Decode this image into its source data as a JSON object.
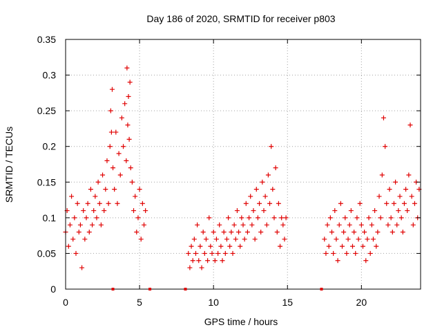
{
  "chart_data": {
    "type": "scatter",
    "title": "Day 186 of 2020, SRMTID for receiver p803",
    "xlabel": "GPS time / hours",
    "ylabel": "SRMTID / TECUs",
    "xlim": [
      0,
      24
    ],
    "ylim": [
      0,
      0.35
    ],
    "xticks": [
      0,
      5,
      10,
      15,
      20
    ],
    "yticks": [
      0,
      0.05,
      0.1,
      0.15,
      0.2,
      0.25,
      0.3,
      0.35
    ],
    "xtick_labels": [
      "0",
      "5",
      "10",
      "15",
      "20"
    ],
    "ytick_labels": [
      "0",
      "0.05",
      "0.1",
      "0.15",
      "0.2",
      "0.25",
      "0.3",
      "0.35"
    ],
    "grid": true,
    "marker": "+",
    "color": "#e00000",
    "gap_markers_x": [
      3.2,
      5.7,
      8.1,
      17.3
    ],
    "series": [
      {
        "name": "SRMTID",
        "x": [
          0.0,
          0.1,
          0.2,
          0.3,
          0.4,
          0.5,
          0.6,
          0.7,
          0.8,
          0.9,
          1.0,
          1.1,
          1.2,
          1.3,
          1.4,
          1.5,
          1.6,
          1.7,
          1.8,
          1.9,
          2.0,
          2.1,
          2.2,
          2.3,
          2.4,
          2.5,
          2.6,
          2.7,
          2.8,
          2.9,
          3.0,
          3.05,
          3.1,
          3.15,
          3.2,
          3.3,
          3.4,
          3.5,
          3.6,
          3.7,
          3.8,
          3.9,
          4.0,
          4.1,
          4.15,
          4.2,
          4.25,
          4.3,
          4.35,
          4.4,
          4.5,
          4.6,
          4.7,
          4.8,
          4.9,
          5.0,
          5.1,
          5.2,
          5.3,
          5.4,
          8.3,
          8.4,
          8.5,
          8.6,
          8.7,
          8.8,
          8.9,
          9.0,
          9.1,
          9.2,
          9.3,
          9.4,
          9.5,
          9.6,
          9.7,
          9.8,
          9.9,
          10.0,
          10.1,
          10.2,
          10.3,
          10.4,
          10.5,
          10.6,
          10.7,
          10.8,
          10.9,
          11.0,
          11.1,
          11.2,
          11.3,
          11.4,
          11.5,
          11.6,
          11.7,
          11.8,
          11.9,
          12.0,
          12.1,
          12.2,
          12.3,
          12.4,
          12.5,
          12.6,
          12.7,
          12.8,
          12.9,
          13.0,
          13.1,
          13.2,
          13.3,
          13.4,
          13.5,
          13.6,
          13.7,
          13.8,
          13.9,
          14.0,
          14.1,
          14.2,
          14.3,
          14.4,
          14.5,
          14.6,
          14.7,
          14.8,
          14.9,
          17.5,
          17.6,
          17.7,
          17.8,
          17.9,
          18.0,
          18.1,
          18.2,
          18.3,
          18.4,
          18.5,
          18.6,
          18.7,
          18.8,
          18.9,
          19.0,
          19.1,
          19.2,
          19.3,
          19.4,
          19.5,
          19.6,
          19.7,
          19.8,
          19.9,
          20.0,
          20.1,
          20.2,
          20.3,
          20.4,
          20.5,
          20.6,
          20.7,
          20.8,
          20.9,
          21.0,
          21.1,
          21.2,
          21.3,
          21.4,
          21.5,
          21.6,
          21.7,
          21.8,
          21.9,
          22.0,
          22.1,
          22.2,
          22.3,
          22.4,
          22.5,
          22.6,
          22.7,
          22.8,
          22.9,
          23.0,
          23.1,
          23.2,
          23.3,
          23.4,
          23.5,
          23.6,
          23.7,
          23.8,
          23.9
        ],
        "y": [
          0.08,
          0.11,
          0.06,
          0.09,
          0.13,
          0.07,
          0.1,
          0.05,
          0.12,
          0.08,
          0.09,
          0.03,
          0.11,
          0.07,
          0.1,
          0.12,
          0.08,
          0.14,
          0.09,
          0.11,
          0.13,
          0.1,
          0.15,
          0.12,
          0.09,
          0.16,
          0.11,
          0.14,
          0.18,
          0.12,
          0.2,
          0.25,
          0.22,
          0.28,
          0.17,
          0.14,
          0.22,
          0.12,
          0.19,
          0.16,
          0.24,
          0.2,
          0.26,
          0.18,
          0.31,
          0.23,
          0.27,
          0.21,
          0.29,
          0.17,
          0.15,
          0.11,
          0.13,
          0.08,
          0.1,
          0.14,
          0.07,
          0.12,
          0.09,
          0.11,
          0.05,
          0.03,
          0.06,
          0.04,
          0.07,
          0.05,
          0.09,
          0.04,
          0.06,
          0.03,
          0.08,
          0.05,
          0.07,
          0.04,
          0.1,
          0.06,
          0.05,
          0.08,
          0.04,
          0.07,
          0.05,
          0.09,
          0.06,
          0.04,
          0.08,
          0.05,
          0.07,
          0.1,
          0.06,
          0.08,
          0.05,
          0.09,
          0.07,
          0.11,
          0.08,
          0.06,
          0.1,
          0.09,
          0.07,
          0.12,
          0.08,
          0.1,
          0.13,
          0.09,
          0.11,
          0.07,
          0.14,
          0.1,
          0.12,
          0.08,
          0.15,
          0.11,
          0.13,
          0.09,
          0.16,
          0.12,
          0.2,
          0.14,
          0.1,
          0.17,
          0.08,
          0.12,
          0.06,
          0.1,
          0.09,
          0.07,
          0.1,
          0.07,
          0.05,
          0.09,
          0.06,
          0.1,
          0.08,
          0.05,
          0.11,
          0.07,
          0.04,
          0.09,
          0.12,
          0.06,
          0.08,
          0.1,
          0.05,
          0.07,
          0.09,
          0.11,
          0.06,
          0.08,
          0.05,
          0.1,
          0.07,
          0.12,
          0.09,
          0.06,
          0.08,
          0.04,
          0.07,
          0.1,
          0.05,
          0.09,
          0.07,
          0.11,
          0.06,
          0.08,
          0.13,
          0.1,
          0.16,
          0.24,
          0.2,
          0.12,
          0.09,
          0.14,
          0.1,
          0.08,
          0.12,
          0.15,
          0.09,
          0.11,
          0.13,
          0.1,
          0.08,
          0.12,
          0.14,
          0.11,
          0.16,
          0.23,
          0.13,
          0.09,
          0.12,
          0.15,
          0.1,
          0.14
        ]
      }
    ]
  }
}
